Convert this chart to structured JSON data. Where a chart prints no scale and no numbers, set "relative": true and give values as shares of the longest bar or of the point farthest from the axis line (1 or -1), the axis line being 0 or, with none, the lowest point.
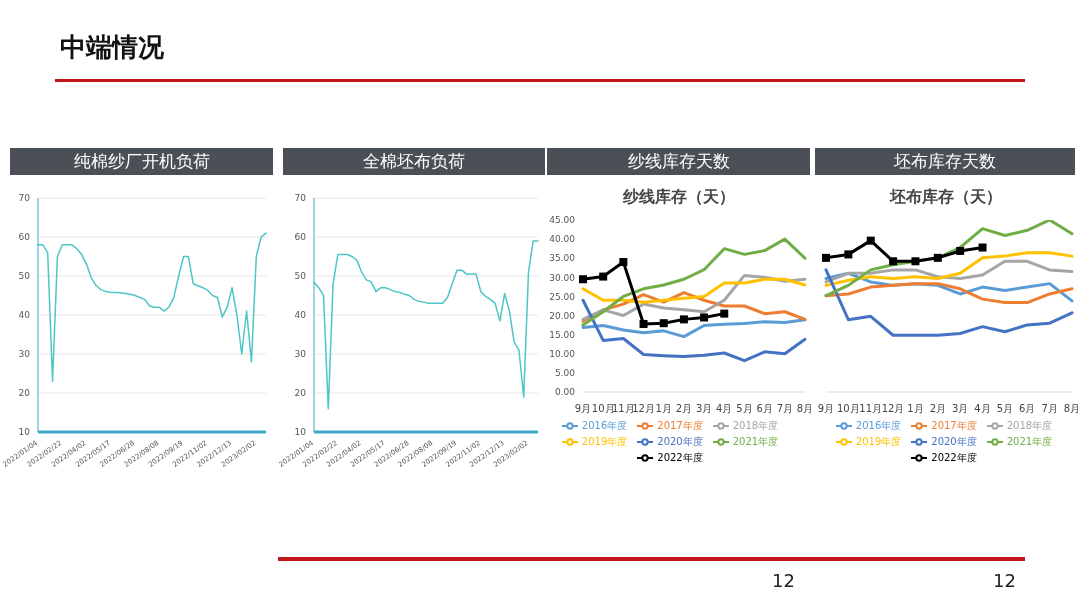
{
  "chart_data": [
    {
      "type": "line",
      "title": "纯棉纱厂开机负荷",
      "annotations": [
        "中端情况"
      ],
      "categories": [
        "2022/01/04",
        null,
        null,
        null,
        null,
        "2022/02/22",
        null,
        null,
        null,
        null,
        "2022/04/02",
        null,
        null,
        null,
        null,
        "2022/05/17",
        null,
        null,
        null,
        null,
        "2022/06/28",
        null,
        null,
        null,
        null,
        "2022/08/08",
        null,
        null,
        null,
        null,
        "2022/09/19",
        null,
        null,
        null,
        null,
        "2022/11/02",
        null,
        null,
        null,
        null,
        "2022/12/13",
        null,
        null,
        null,
        null,
        "2023/02/02",
        null,
        null
      ],
      "ylim": [
        10,
        70
      ],
      "yticks": [
        10,
        20,
        30,
        40,
        50,
        60,
        70
      ],
      "grid": "y",
      "marker": "none",
      "series": [
        {
          "color": "#4fc6c6",
          "values": [
            58,
            58,
            56,
            23,
            55,
            58,
            58,
            58,
            57,
            55.5,
            53,
            49.5,
            47.5,
            46.5,
            46,
            45.8,
            45.8,
            45.7,
            45.5,
            45.3,
            45,
            44.5,
            44,
            42.3,
            42,
            42,
            41,
            42,
            44.5,
            50,
            55,
            55,
            48,
            47.5,
            47,
            46.3,
            45,
            44.5,
            39.5,
            42,
            47,
            40,
            30,
            41,
            28,
            55,
            60,
            61
          ]
        }
      ]
    },
    {
      "type": "line",
      "title": "全棉坯布负荷",
      "categories": [
        "2022/01/04",
        null,
        null,
        null,
        null,
        "2022/02/22",
        null,
        null,
        null,
        null,
        "2022/04/02",
        null,
        null,
        null,
        null,
        "2022/05/17",
        null,
        null,
        null,
        null,
        "2022/06/28",
        null,
        null,
        null,
        null,
        "2022/08/08",
        null,
        null,
        null,
        null,
        "2022/09/19",
        null,
        null,
        null,
        null,
        "2022/11/02",
        null,
        null,
        null,
        null,
        "2022/12/13",
        null,
        null,
        null,
        null,
        "2023/02/02",
        null,
        null
      ],
      "ylim": [
        10,
        70
      ],
      "yticks": [
        10,
        20,
        30,
        40,
        50,
        60,
        70
      ],
      "grid": "y",
      "marker": "none",
      "series": [
        {
          "color": "#4fc6c6",
          "values": [
            48.4,
            47,
            45,
            16,
            48,
            55.5,
            55.5,
            55.5,
            55,
            54,
            51,
            49,
            48.5,
            46,
            47,
            47,
            46.5,
            46,
            45.8,
            45.3,
            45,
            44,
            43.5,
            43.3,
            43,
            43,
            43,
            43,
            44.5,
            48,
            51.5,
            51.5,
            50.5,
            50.5,
            50.5,
            46,
            44.8,
            44,
            43,
            38.5,
            45.5,
            41,
            33,
            31,
            19,
            51,
            59,
            59
          ]
        }
      ]
    },
    {
      "type": "line",
      "title": "纱线库存天数",
      "subtitle": "纱线库存（天）",
      "categories": [
        "9月",
        "10月",
        "11月",
        "12月",
        "1月",
        "2月",
        "3月",
        "4月",
        "5月",
        "6月",
        "7月",
        "8月"
      ],
      "ylim": [
        0,
        45
      ],
      "yticks": [
        {
          "value": 0,
          "label": "0.00"
        },
        {
          "value": 5,
          "label": "5.00"
        },
        {
          "value": 10,
          "label": "10.00"
        },
        {
          "value": 15,
          "label": "15.00"
        },
        {
          "value": 20,
          "label": "20.00"
        },
        {
          "value": 25,
          "label": "25.00"
        },
        {
          "value": 30,
          "label": "30.00"
        },
        {
          "value": 35,
          "label": "35.00"
        },
        {
          "value": 40,
          "label": "40.00"
        },
        {
          "value": 45,
          "label": "45.00"
        }
      ],
      "grid": false,
      "legend": "bottom",
      "series": [
        {
          "name": "2016年度",
          "color": "#5b9bd5",
          "values": [
            16.9,
            17.4,
            16.2,
            15.5,
            16,
            14.5,
            17.4,
            17.7,
            17.9,
            18.4,
            18.2,
            18.9
          ]
        },
        {
          "name": "2017年度",
          "color": "#ed7d31",
          "values": [
            18.5,
            21.5,
            23,
            25.5,
            23.5,
            26,
            24,
            22.5,
            22.5,
            20.5,
            21,
            19
          ]
        },
        {
          "name": "2018年度",
          "color": "#a5a5a5",
          "values": [
            19,
            21.5,
            20,
            23,
            22,
            21.5,
            21,
            24,
            30.5,
            30,
            29,
            29.5
          ]
        },
        {
          "name": "2019年度",
          "color": "#ffc000",
          "values": [
            27,
            24,
            24,
            23.5,
            24,
            24.5,
            25,
            28.5,
            28.5,
            29.5,
            29.5,
            28
          ]
        },
        {
          "name": "2020年度",
          "color": "#4472c4",
          "values": [
            24,
            13.5,
            14,
            9.8,
            9.5,
            9.3,
            9.6,
            10.2,
            8.2,
            10.5,
            10,
            13.8
          ]
        },
        {
          "name": "2021年度",
          "color": "#70ad47",
          "values": [
            17.5,
            21,
            25,
            27,
            28,
            29.5,
            32,
            37.5,
            36,
            37,
            40,
            35
          ]
        },
        {
          "name": "2022年度",
          "color": "#000000",
          "marker": "square",
          "values": [
            29.5,
            30.2,
            34,
            17.8,
            18,
            19,
            19.5,
            20.5,
            null,
            null,
            null,
            null
          ]
        }
      ]
    },
    {
      "type": "line",
      "title": "坯布库存天数",
      "subtitle": "坯布库存（天）",
      "annotations": [
        "12",
        "12"
      ],
      "categories": [
        "9月",
        "10月",
        "11月",
        "12月",
        "1月",
        "2月",
        "3月",
        "4月",
        "5月",
        "6月",
        "7月",
        "8月"
      ],
      "relative": true,
      "grid": false,
      "legend": "bottom",
      "series": [
        {
          "name": "2016年度",
          "color": "#5b9bd5",
          "values": [
            0.66,
            0.69,
            0.64,
            0.62,
            0.63,
            0.62,
            0.57,
            0.61,
            0.59,
            0.61,
            0.63,
            0.53
          ]
        },
        {
          "name": "2017年度",
          "color": "#ed7d31",
          "values": [
            0.56,
            0.57,
            0.61,
            0.62,
            0.63,
            0.63,
            0.6,
            0.54,
            0.52,
            0.52,
            0.57,
            0.6
          ]
        },
        {
          "name": "2018年度",
          "color": "#a5a5a5",
          "values": [
            0.64,
            0.69,
            0.69,
            0.71,
            0.71,
            0.67,
            0.66,
            0.68,
            0.76,
            0.76,
            0.71,
            0.7
          ]
        },
        {
          "name": "2019年度",
          "color": "#ffc000",
          "values": [
            0.62,
            0.65,
            0.67,
            0.66,
            0.67,
            0.66,
            0.69,
            0.78,
            0.79,
            0.81,
            0.81,
            0.79
          ]
        },
        {
          "name": "2020年度",
          "color": "#4472c4",
          "values": [
            0.71,
            0.42,
            0.44,
            0.33,
            0.33,
            0.33,
            0.34,
            0.38,
            0.35,
            0.39,
            0.4,
            0.46
          ]
        },
        {
          "name": "2021年度",
          "color": "#70ad47",
          "values": [
            0.56,
            0.62,
            0.71,
            0.74,
            0.76,
            0.78,
            0.84,
            0.95,
            0.91,
            0.94,
            1,
            0.92
          ]
        },
        {
          "name": "2022年度",
          "color": "#000000",
          "marker": "square",
          "values": [
            0.78,
            0.8,
            0.88,
            0.76,
            0.76,
            0.78,
            0.82,
            0.84,
            null,
            null,
            null,
            null
          ]
        }
      ]
    }
  ]
}
